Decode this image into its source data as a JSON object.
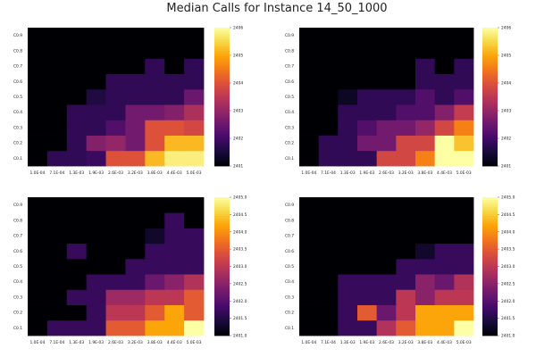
{
  "title": "Median Calls for Instance 14_50_1000",
  "chart_data": [
    {
      "type": "heatmap",
      "x": [
        "1.0E-04",
        "7.1E-04",
        "1.3E-03",
        "1.9E-03",
        "2.6E-03",
        "3.2E-03",
        "3.8E-03",
        "4.4E-03",
        "5.0E-03"
      ],
      "y": [
        "C0.1",
        "C0.2",
        "C0.3",
        "C0.4",
        "C0.5",
        "C0.6",
        "C0.7",
        "C0.8",
        "C0.9"
      ],
      "zlim": [
        2401,
        2406
      ],
      "colorbar_ticks": [
        "2401",
        "2402",
        "2403",
        "2404",
        "2405",
        "2406"
      ],
      "z": [
        [
          2401.0,
          2401.8,
          2401.8,
          2401.9,
          2404.0,
          2404.0,
          2405.2,
          2405.8,
          2405.8
        ],
        [
          2401.0,
          2401.0,
          2401.8,
          2402.8,
          2403.0,
          2402.6,
          2404.0,
          2405.2,
          2405.2
        ],
        [
          2401.0,
          2401.0,
          2401.8,
          2401.8,
          2402.2,
          2402.6,
          2404.0,
          2404.0,
          2403.8
        ],
        [
          2401.0,
          2401.0,
          2401.8,
          2401.8,
          2401.8,
          2402.6,
          2402.6,
          2402.8,
          2403.3
        ],
        [
          2401.0,
          2401.0,
          2401.0,
          2401.6,
          2401.8,
          2401.8,
          2401.8,
          2401.8,
          2402.5
        ],
        [
          2401.0,
          2401.0,
          2401.0,
          2401.0,
          2401.8,
          2401.8,
          2401.8,
          2401.8,
          2401.8
        ],
        [
          2401.0,
          2401.0,
          2401.0,
          2401.0,
          2401.0,
          2401.0,
          2401.8,
          2401.0,
          2401.8
        ],
        [
          2401.0,
          2401.0,
          2401.0,
          2401.0,
          2401.0,
          2401.0,
          2401.0,
          2401.0,
          2401.0
        ],
        [
          2401.0,
          2401.0,
          2401.0,
          2401.0,
          2401.0,
          2401.0,
          2401.0,
          2401.0,
          2401.0
        ]
      ]
    },
    {
      "type": "heatmap",
      "x": [
        "1.0E-04",
        "7.1E-04",
        "1.3E-03",
        "1.9E-03",
        "2.6E-03",
        "3.2E-03",
        "3.8E-03",
        "4.4E-03",
        "5.0E-03"
      ],
      "y": [
        "C0.1",
        "C0.2",
        "C0.3",
        "C0.4",
        "C0.5",
        "C0.6",
        "C0.7",
        "C0.8",
        "C0.9"
      ],
      "zlim": [
        2401,
        2406
      ],
      "colorbar_ticks": [
        "2401",
        "2402",
        "2403",
        "2404",
        "2405",
        "2406"
      ],
      "z": [
        [
          2401.0,
          2401.8,
          2401.8,
          2401.8,
          2403.8,
          2403.8,
          2404.6,
          2406.0,
          2406.0
        ],
        [
          2401.0,
          2401.8,
          2401.8,
          2402.6,
          2402.6,
          2403.8,
          2403.8,
          2406.0,
          2405.3
        ],
        [
          2401.0,
          2401.0,
          2401.8,
          2402.2,
          2402.6,
          2402.6,
          2403.0,
          2403.8,
          2404.6
        ],
        [
          2401.0,
          2401.0,
          2401.8,
          2401.8,
          2401.8,
          2402.2,
          2402.2,
          2402.8,
          2403.6
        ],
        [
          2401.0,
          2401.0,
          2401.3,
          2401.8,
          2401.8,
          2401.8,
          2402.2,
          2401.8,
          2402.2
        ],
        [
          2401.0,
          2401.0,
          2401.0,
          2401.0,
          2401.0,
          2401.0,
          2401.8,
          2401.8,
          2401.8
        ],
        [
          2401.0,
          2401.0,
          2401.0,
          2401.0,
          2401.0,
          2401.0,
          2401.8,
          2401.0,
          2401.8
        ],
        [
          2401.0,
          2401.0,
          2401.0,
          2401.0,
          2401.0,
          2401.0,
          2401.0,
          2401.0,
          2401.0
        ],
        [
          2401.0,
          2401.0,
          2401.0,
          2401.0,
          2401.0,
          2401.0,
          2401.0,
          2401.0,
          2401.0
        ]
      ]
    },
    {
      "type": "heatmap",
      "x": [
        "1.0E-04",
        "7.1E-04",
        "1.3E-03",
        "1.9E-03",
        "2.6E-03",
        "3.2E-03",
        "3.8E-03",
        "4.4E-03",
        "5.0E-03"
      ],
      "y": [
        "C0.1",
        "C0.2",
        "C0.3",
        "C0.4",
        "C0.5",
        "C0.6",
        "C0.7",
        "C0.8",
        "C0.9"
      ],
      "zlim": [
        2401.0,
        2405.0
      ],
      "colorbar_ticks": [
        "2401.0",
        "2401.5",
        "2402.0",
        "2402.5",
        "2403.0",
        "2403.5",
        "2404.0",
        "2404.5",
        "2405.0"
      ],
      "z": [
        [
          2401.0,
          2401.7,
          2401.7,
          2401.7,
          2403.5,
          2403.5,
          2404.2,
          2404.2,
          2405.0
        ],
        [
          2401.0,
          2401.0,
          2401.0,
          2401.7,
          2403.0,
          2403.0,
          2403.5,
          2404.2,
          2403.5
        ],
        [
          2401.0,
          2401.0,
          2401.7,
          2401.7,
          2402.7,
          2402.7,
          2403.0,
          2403.0,
          2403.5
        ],
        [
          2401.0,
          2401.0,
          2401.0,
          2401.7,
          2401.7,
          2401.7,
          2402.2,
          2402.5,
          2402.9
        ],
        [
          2401.0,
          2401.0,
          2401.0,
          2401.0,
          2401.0,
          2401.7,
          2401.7,
          2401.7,
          2401.7
        ],
        [
          2401.0,
          2401.0,
          2401.7,
          2401.0,
          2401.0,
          2401.0,
          2401.7,
          2401.7,
          2401.7
        ],
        [
          2401.0,
          2401.0,
          2401.0,
          2401.0,
          2401.0,
          2401.0,
          2401.3,
          2401.7,
          2401.7
        ],
        [
          2401.0,
          2401.0,
          2401.0,
          2401.0,
          2401.0,
          2401.0,
          2401.0,
          2401.7,
          2401.0
        ],
        [
          2401.0,
          2401.0,
          2401.0,
          2401.0,
          2401.0,
          2401.0,
          2401.0,
          2401.0,
          2401.0
        ]
      ]
    },
    {
      "type": "heatmap",
      "x": [
        "1.0E-04",
        "7.1E-04",
        "1.3E-03",
        "1.9E-03",
        "2.6E-03",
        "3.2E-03",
        "3.8E-03",
        "4.4E-03",
        "5.0E-03"
      ],
      "y": [
        "C0.1",
        "C0.2",
        "C0.3",
        "C0.4",
        "C0.5",
        "C0.6",
        "C0.7",
        "C0.8",
        "C0.9"
      ],
      "zlim": [
        2401.0,
        2405.0
      ],
      "colorbar_ticks": [
        "2401.0",
        "2401.5",
        "2402.0",
        "2402.5",
        "2403.0",
        "2403.5",
        "2404.0",
        "2404.5",
        "2405.0"
      ],
      "z": [
        [
          2401.0,
          2401.0,
          2401.7,
          2401.7,
          2402.9,
          2403.5,
          2404.2,
          2404.2,
          2405.0
        ],
        [
          2401.0,
          2401.0,
          2401.7,
          2403.5,
          2402.2,
          2403.0,
          2404.2,
          2404.2,
          2404.2
        ],
        [
          2401.0,
          2401.0,
          2401.7,
          2401.7,
          2401.7,
          2403.0,
          2402.5,
          2403.0,
          2403.0
        ],
        [
          2401.0,
          2401.0,
          2401.7,
          2401.7,
          2401.7,
          2401.7,
          2402.5,
          2402.2,
          2402.9
        ],
        [
          2401.0,
          2401.0,
          2401.0,
          2401.0,
          2401.0,
          2401.7,
          2401.7,
          2401.7,
          2401.7
        ],
        [
          2401.0,
          2401.0,
          2401.0,
          2401.0,
          2401.0,
          2401.0,
          2401.3,
          2401.7,
          2401.7
        ],
        [
          2401.0,
          2401.0,
          2401.0,
          2401.0,
          2401.0,
          2401.0,
          2401.0,
          2401.0,
          2401.0
        ],
        [
          2401.0,
          2401.0,
          2401.0,
          2401.0,
          2401.0,
          2401.0,
          2401.0,
          2401.0,
          2401.0
        ],
        [
          2401.0,
          2401.0,
          2401.0,
          2401.0,
          2401.0,
          2401.0,
          2401.0,
          2401.0,
          2401.0
        ]
      ]
    }
  ]
}
